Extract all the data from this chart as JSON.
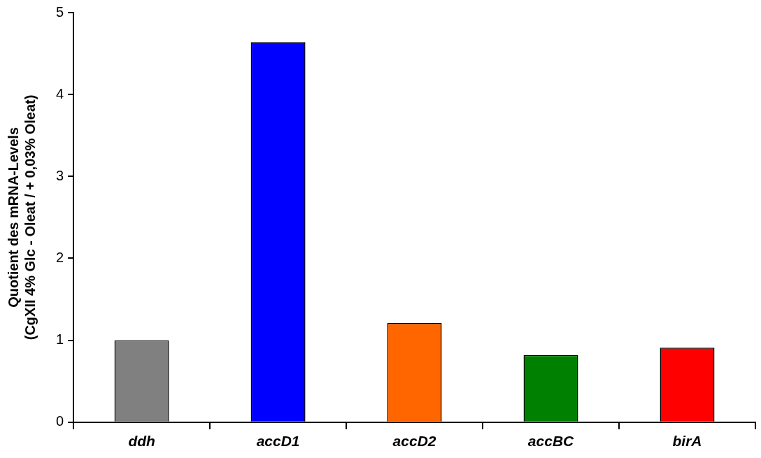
{
  "chart_data": {
    "type": "bar",
    "ylabel": "Quotient des mRNA-Levels\n(CgXII 4% Glc - Oleat / + 0,03% Oleat)",
    "categories": [
      "ddh",
      "accD1",
      "accD2",
      "accBC",
      "birA"
    ],
    "values": [
      1.0,
      4.64,
      1.21,
      0.82,
      0.91
    ],
    "colors": [
      "#808080",
      "#0000ff",
      "#ff6600",
      "#008000",
      "#ff0000"
    ],
    "ylim": [
      0,
      5
    ],
    "yticks": [
      0,
      1,
      2,
      3,
      4,
      5
    ],
    "grid": false,
    "legend": false
  }
}
